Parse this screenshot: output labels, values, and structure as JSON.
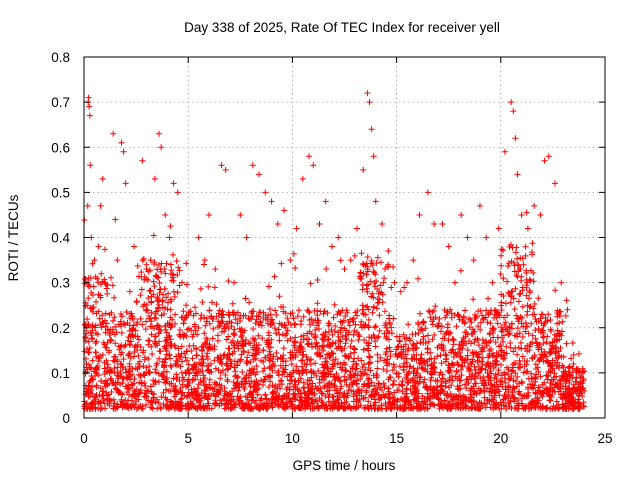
{
  "chart_data": {
    "type": "scatter",
    "title": "Day 338 of 2025, Rate Of TEC Index for receiver yell",
    "xlabel": "GPS time / hours",
    "ylabel": "ROTI / TECUs",
    "xlim": [
      0,
      25
    ],
    "ylim": [
      0,
      0.8
    ],
    "xticks": [
      "0",
      "5",
      "10",
      "15",
      "20",
      "25"
    ],
    "yticks": [
      "0",
      "0.1",
      "0.2",
      "0.3",
      "0.4",
      "0.5",
      "0.6",
      "0.7",
      "0.8"
    ],
    "grid": true,
    "marker": "+",
    "color": "#ff0000",
    "series": [
      {
        "values_hint": "dense scatter of ROTI values between 0 and 24 hours",
        "points": [
          [
            0.05,
            0.03
          ],
          [
            0.12,
            0.12
          ],
          [
            0.15,
            0.25
          ],
          [
            0.18,
            0.47
          ],
          [
            0.2,
            0.7
          ],
          [
            0.22,
            0.71
          ],
          [
            0.25,
            0.69
          ],
          [
            0.28,
            0.67
          ],
          [
            0.3,
            0.56
          ],
          [
            0.35,
            0.4
          ],
          [
            0.4,
            0.2
          ],
          [
            0.5,
            0.35
          ],
          [
            0.6,
            0.1
          ],
          [
            0.7,
            0.38
          ],
          [
            0.8,
            0.47
          ],
          [
            0.9,
            0.53
          ],
          [
            1.0,
            0.3
          ],
          [
            1.2,
            0.15
          ],
          [
            1.4,
            0.63
          ],
          [
            1.5,
            0.44
          ],
          [
            1.6,
            0.35
          ],
          [
            1.8,
            0.61
          ],
          [
            1.9,
            0.59
          ],
          [
            2.0,
            0.52
          ],
          [
            2.2,
            0.28
          ],
          [
            2.4,
            0.38
          ],
          [
            2.6,
            0.12
          ],
          [
            2.8,
            0.57
          ],
          [
            3.0,
            0.33
          ],
          [
            3.2,
            0.35
          ],
          [
            3.4,
            0.53
          ],
          [
            3.6,
            0.63
          ],
          [
            3.7,
            0.6
          ],
          [
            3.9,
            0.45
          ],
          [
            4.1,
            0.4
          ],
          [
            4.3,
            0.52
          ],
          [
            4.5,
            0.5
          ],
          [
            4.7,
            0.3
          ],
          [
            4.9,
            0.25
          ],
          [
            5.2,
            0.18
          ],
          [
            5.5,
            0.4
          ],
          [
            5.8,
            0.35
          ],
          [
            6.0,
            0.45
          ],
          [
            6.3,
            0.33
          ],
          [
            6.6,
            0.56
          ],
          [
            6.8,
            0.55
          ],
          [
            7.2,
            0.3
          ],
          [
            7.5,
            0.45
          ],
          [
            7.8,
            0.4
          ],
          [
            8.1,
            0.56
          ],
          [
            8.4,
            0.54
          ],
          [
            8.7,
            0.5
          ],
          [
            9.0,
            0.48
          ],
          [
            9.3,
            0.43
          ],
          [
            9.6,
            0.46
          ],
          [
            9.9,
            0.35
          ],
          [
            10.2,
            0.42
          ],
          [
            10.5,
            0.53
          ],
          [
            10.8,
            0.58
          ],
          [
            11.0,
            0.56
          ],
          [
            11.3,
            0.43
          ],
          [
            11.6,
            0.48
          ],
          [
            11.9,
            0.38
          ],
          [
            12.2,
            0.4
          ],
          [
            12.5,
            0.33
          ],
          [
            12.8,
            0.35
          ],
          [
            13.1,
            0.42
          ],
          [
            13.4,
            0.55
          ],
          [
            13.6,
            0.72
          ],
          [
            13.7,
            0.7
          ],
          [
            13.8,
            0.64
          ],
          [
            13.9,
            0.58
          ],
          [
            14.0,
            0.48
          ],
          [
            14.3,
            0.43
          ],
          [
            14.6,
            0.37
          ],
          [
            14.9,
            0.3
          ],
          [
            15.2,
            0.28
          ],
          [
            15.5,
            0.3
          ],
          [
            15.8,
            0.35
          ],
          [
            16.1,
            0.45
          ],
          [
            16.5,
            0.5
          ],
          [
            16.8,
            0.43
          ],
          [
            17.2,
            0.43
          ],
          [
            17.5,
            0.38
          ],
          [
            17.8,
            0.3
          ],
          [
            18.1,
            0.45
          ],
          [
            18.4,
            0.4
          ],
          [
            18.7,
            0.35
          ],
          [
            19.0,
            0.47
          ],
          [
            19.3,
            0.4
          ],
          [
            19.6,
            0.3
          ],
          [
            19.9,
            0.42
          ],
          [
            20.2,
            0.59
          ],
          [
            20.5,
            0.7
          ],
          [
            20.6,
            0.68
          ],
          [
            20.7,
            0.62
          ],
          [
            20.8,
            0.54
          ],
          [
            21.0,
            0.45
          ],
          [
            21.3,
            0.42
          ],
          [
            21.6,
            0.47
          ],
          [
            21.9,
            0.45
          ],
          [
            22.1,
            0.57
          ],
          [
            22.3,
            0.58
          ],
          [
            22.6,
            0.52
          ],
          [
            22.9,
            0.3
          ],
          [
            23.2,
            0.24
          ],
          [
            23.5,
            0.14
          ],
          [
            23.8,
            0.09
          ],
          [
            24.0,
            0.06
          ]
        ]
      }
    ]
  }
}
